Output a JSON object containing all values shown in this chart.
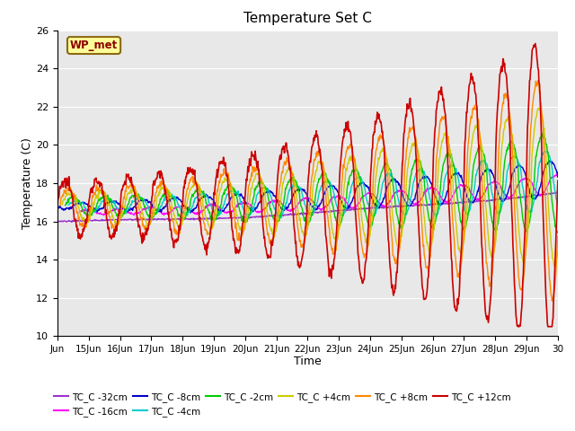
{
  "title": "Temperature Set C",
  "xlabel": "Time",
  "ylabel": "Temperature (C)",
  "ylim": [
    10,
    26
  ],
  "yticks": [
    10,
    12,
    14,
    16,
    18,
    20,
    22,
    24,
    26
  ],
  "background_color": "#e8e8e8",
  "figure_color": "#ffffff",
  "annotation_text": "WP_met",
  "annotation_bg": "#ffff99",
  "annotation_edge": "#8b6914",
  "series": [
    {
      "label": "TC_C -32cm",
      "color": "#9933cc",
      "linewidth": 1.0
    },
    {
      "label": "TC_C -16cm",
      "color": "#ff00ff",
      "linewidth": 1.0
    },
    {
      "label": "TC_C -8cm",
      "color": "#0000cc",
      "linewidth": 1.0
    },
    {
      "label": "TC_C -4cm",
      "color": "#00cccc",
      "linewidth": 1.0
    },
    {
      "label": "TC_C -2cm",
      "color": "#00cc00",
      "linewidth": 1.0
    },
    {
      "label": "TC_C +4cm",
      "color": "#cccc00",
      "linewidth": 1.0
    },
    {
      "label": "TC_C +8cm",
      "color": "#ff8800",
      "linewidth": 1.0
    },
    {
      "label": "TC_C +12cm",
      "color": "#cc0000",
      "linewidth": 1.2
    }
  ],
  "xtick_labels": [
    "Jun",
    "15Jun",
    "16Jun",
    "17Jun",
    "18Jun",
    "19Jun",
    "20Jun",
    "21Jun",
    "22Jun",
    "23Jun",
    "24Jun",
    "25Jun",
    "26Jun",
    "27Jun",
    "28Jun",
    "29Jun",
    "30"
  ]
}
